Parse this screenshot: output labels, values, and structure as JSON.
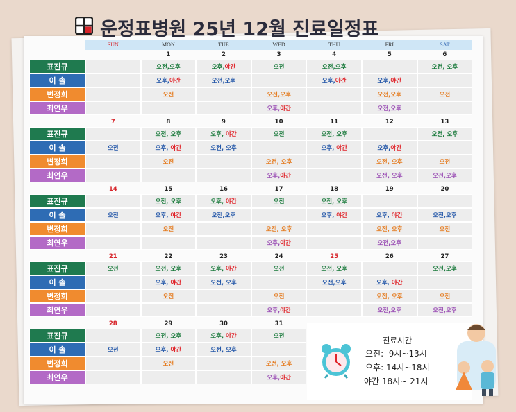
{
  "title": "운정표병원 25년 12월 진료일정표",
  "days": [
    "SUN",
    "MON",
    "TUE",
    "WED",
    "THU",
    "FRI",
    "SAT"
  ],
  "doctors": [
    {
      "name": "표진규",
      "color": "#1f7a4f",
      "text_color": "#1a7a3c"
    },
    {
      "name": "이 솔",
      "color": "#2e6cb4",
      "text_color": "#2256a8"
    },
    {
      "name": "변정희",
      "color": "#f08b2f",
      "text_color": "#e57d22"
    },
    {
      "name": "최연우",
      "color": "#b36ac6",
      "text_color": "#9b4fb5"
    }
  ],
  "weeks": [
    {
      "dates": [
        null,
        "1",
        "2",
        "3",
        "4",
        "5",
        "6"
      ],
      "red": [],
      "rows": [
        [
          null,
          "오전,오후",
          "오후,야간",
          "오전",
          "오전,오후",
          null,
          "오전, 오후"
        ],
        [
          null,
          "오후,야간",
          "오전,오후",
          null,
          "오후,야간",
          "오후,야간",
          null
        ],
        [
          null,
          "오전",
          null,
          "오전,오후",
          null,
          "오전,오후",
          "오전"
        ],
        [
          null,
          null,
          null,
          "오후,야간",
          null,
          "오전,오후",
          null
        ]
      ]
    },
    {
      "dates": [
        "7",
        "8",
        "9",
        "10",
        "11",
        "12",
        "13"
      ],
      "red": [
        0
      ],
      "rows": [
        [
          null,
          "오전, 오후",
          "오후, 야간",
          "오전",
          "오전, 오후",
          null,
          "오전, 오후"
        ],
        [
          "오전",
          "오후, 야간",
          "오전, 오후",
          null,
          "오후, 야간",
          "오후,야간",
          null
        ],
        [
          null,
          "오전",
          null,
          "오전, 오후",
          null,
          "오전, 오후",
          "오전"
        ],
        [
          null,
          null,
          null,
          "오후,야간",
          null,
          "오전, 오후",
          "오전,오후"
        ]
      ]
    },
    {
      "dates": [
        "14",
        "15",
        "16",
        "17",
        "18",
        "19",
        "20"
      ],
      "red": [
        0
      ],
      "rows": [
        [
          null,
          "오전, 오후",
          "오후, 야간",
          "오전",
          "오전, 오후",
          null,
          null
        ],
        [
          "오전",
          "오후, 야간",
          "오전,오후",
          null,
          "오후, 야간",
          "오후, 야간",
          "오전,오후"
        ],
        [
          null,
          "오전",
          null,
          "오전, 오후",
          null,
          "오전, 오후",
          "오전"
        ],
        [
          null,
          null,
          null,
          "오후,야간",
          null,
          "오전,오후",
          null
        ]
      ]
    },
    {
      "dates": [
        "21",
        "22",
        "23",
        "24",
        "25",
        "26",
        "27"
      ],
      "red": [
        0,
        4
      ],
      "rows": [
        [
          "오전",
          "오전, 오후",
          "오후, 야간",
          "오전",
          "오전, 오후",
          null,
          "오전,오후"
        ],
        [
          null,
          "오후, 야간",
          "오전, 오후",
          null,
          "오전,오후",
          "오후, 야간",
          null
        ],
        [
          null,
          "오전",
          null,
          "오전",
          null,
          "오전, 오후",
          "오전"
        ],
        [
          null,
          null,
          null,
          "오후,야간",
          null,
          "오전,오후",
          "오전,오후"
        ]
      ]
    },
    {
      "dates": [
        "28",
        "29",
        "30",
        "31"
      ],
      "red": [
        0
      ],
      "rows": [
        [
          null,
          "오전, 오후",
          "오후, 야간",
          "오전"
        ],
        [
          "오전",
          "오후, 야간",
          "오전, 오후",
          null
        ],
        [
          null,
          "오전",
          null,
          "오전, 오후"
        ],
        [
          null,
          null,
          null,
          "오후,야간"
        ]
      ]
    }
  ],
  "hours": {
    "title": "진료시간",
    "lines": [
      "오전:  9시~13시",
      "오후: 14시~18시",
      "야간 18시~ 21시"
    ]
  }
}
